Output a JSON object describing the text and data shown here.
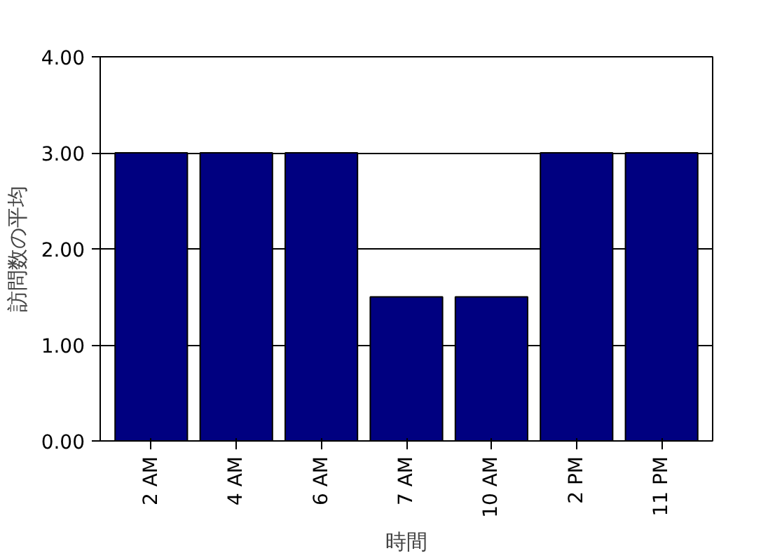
{
  "chart_data": {
    "type": "bar",
    "xlabel": "時間",
    "ylabel": "訪問数の平均",
    "categories": [
      "2 AM",
      "4 AM",
      "6 AM",
      "7 AM",
      "10 AM",
      "2 PM",
      "11 PM"
    ],
    "values": [
      3,
      3,
      3,
      1.5,
      1.5,
      3,
      3
    ],
    "color": "#000080",
    "ylim": [
      0,
      4
    ],
    "yticks": [
      {
        "value": 0,
        "label": "0.00"
      },
      {
        "value": 1,
        "label": "1.00"
      },
      {
        "value": 2,
        "label": "2.00"
      },
      {
        "value": 3,
        "label": "3.00"
      },
      {
        "value": 4,
        "label": "4.00"
      }
    ],
    "grid": "y"
  }
}
